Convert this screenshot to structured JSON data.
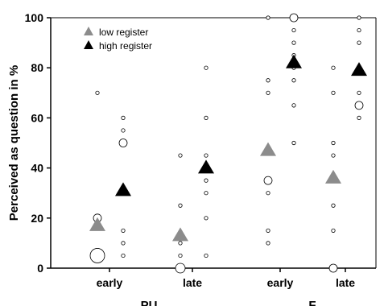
{
  "chart_data": {
    "type": "scatter",
    "ylabel": "Perceived as question in %",
    "ylim": [
      0,
      100
    ],
    "yticks": [
      "0",
      "20",
      "40",
      "60",
      "80",
      "100"
    ],
    "categories": [
      "early",
      "late",
      "early",
      "late"
    ],
    "groups": [
      "PU",
      "F"
    ],
    "grid": false,
    "legend_position": "top-left",
    "series": [
      {
        "name": "low register",
        "color": "#8c8c8c",
        "means": [
          17,
          13,
          47,
          36
        ],
        "individual": [
          [
            [
              5,
              3
            ],
            [
              20,
              1
            ],
            [
              70,
              0
            ]
          ],
          [
            [
              0,
              2
            ],
            [
              5,
              0
            ],
            [
              10,
              0
            ],
            [
              25,
              0
            ],
            [
              45,
              0
            ]
          ],
          [
            [
              10,
              0
            ],
            [
              15,
              0
            ],
            [
              30,
              0
            ],
            [
              35,
              1
            ],
            [
              70,
              0
            ],
            [
              75,
              0
            ],
            [
              100,
              0
            ]
          ],
          [
            [
              0,
              1
            ],
            [
              15,
              0
            ],
            [
              25,
              0
            ],
            [
              45,
              0
            ],
            [
              50,
              0
            ],
            [
              70,
              0
            ],
            [
              80,
              0
            ]
          ]
        ]
      },
      {
        "name": "high register",
        "color": "#000000",
        "means": [
          31,
          40,
          82,
          79
        ],
        "individual": [
          [
            [
              5,
              0
            ],
            [
              10,
              0
            ],
            [
              15,
              0
            ],
            [
              50,
              1
            ],
            [
              55,
              0
            ],
            [
              60,
              0
            ]
          ],
          [
            [
              5,
              0
            ],
            [
              20,
              0
            ],
            [
              30,
              0
            ],
            [
              35,
              0
            ],
            [
              45,
              0
            ],
            [
              60,
              0
            ],
            [
              80,
              0
            ]
          ],
          [
            [
              50,
              0
            ],
            [
              65,
              0
            ],
            [
              75,
              0
            ],
            [
              80,
              0
            ],
            [
              85,
              0
            ],
            [
              90,
              0
            ],
            [
              95,
              0
            ],
            [
              100,
              1
            ]
          ],
          [
            [
              60,
              0
            ],
            [
              65,
              1
            ],
            [
              70,
              0
            ],
            [
              90,
              0
            ],
            [
              95,
              0
            ],
            [
              100,
              0
            ]
          ]
        ]
      }
    ]
  }
}
